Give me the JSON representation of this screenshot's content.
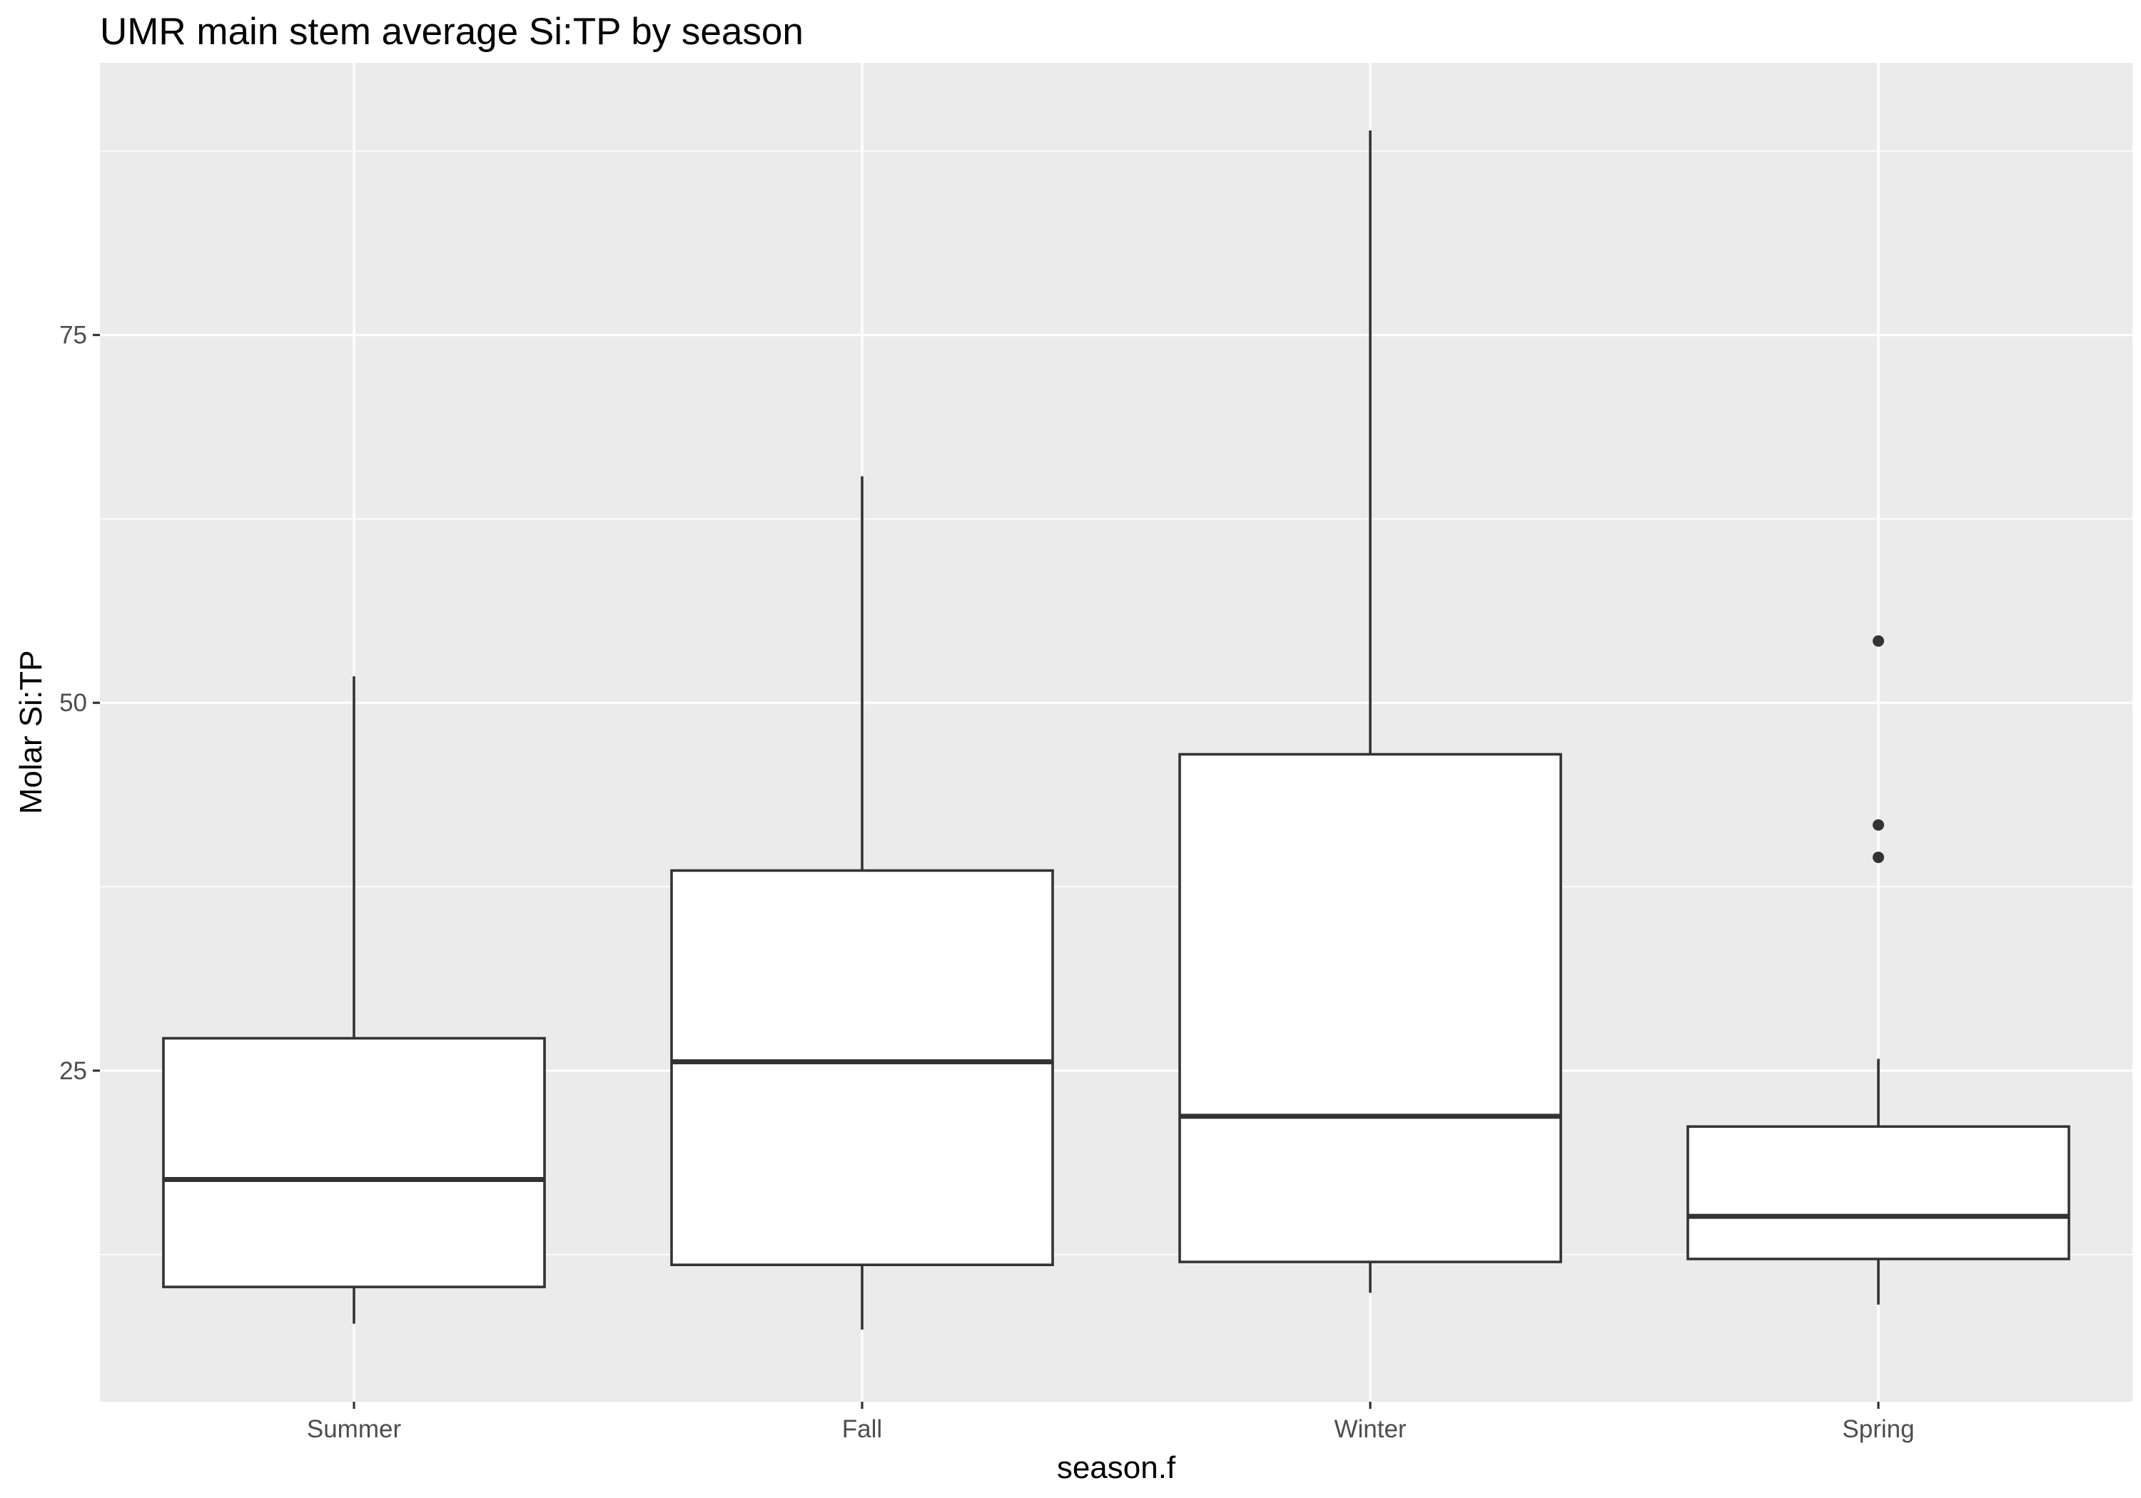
{
  "chart_data": {
    "type": "boxplot",
    "title": "UMR main stem average Si:TP by season",
    "xlabel": "season.f",
    "ylabel": "Molar Si:TP",
    "ylim": [
      2.5,
      93.5
    ],
    "yticks": [
      25,
      50,
      75
    ],
    "yminor": [
      12.5,
      37.5,
      62.5,
      87.5
    ],
    "grid": true,
    "legend": "none",
    "categories": [
      "Summer",
      "Fall",
      "Winter",
      "Spring"
    ],
    "boxes": [
      {
        "category": "Summer",
        "whisker_low": 7.8,
        "q1": 10.3,
        "median": 17.6,
        "q3": 27.2,
        "whisker_high": 51.8,
        "outliers": []
      },
      {
        "category": "Fall",
        "whisker_low": 7.4,
        "q1": 11.8,
        "median": 25.6,
        "q3": 38.6,
        "whisker_high": 65.4,
        "outliers": []
      },
      {
        "category": "Winter",
        "whisker_low": 9.9,
        "q1": 12.0,
        "median": 21.9,
        "q3": 46.5,
        "whisker_high": 88.9,
        "outliers": []
      },
      {
        "category": "Spring",
        "whisker_low": 9.1,
        "q1": 12.2,
        "median": 15.1,
        "q3": 21.2,
        "whisker_high": 25.8,
        "outliers": [
          54.2,
          41.7,
          39.5
        ]
      }
    ]
  }
}
